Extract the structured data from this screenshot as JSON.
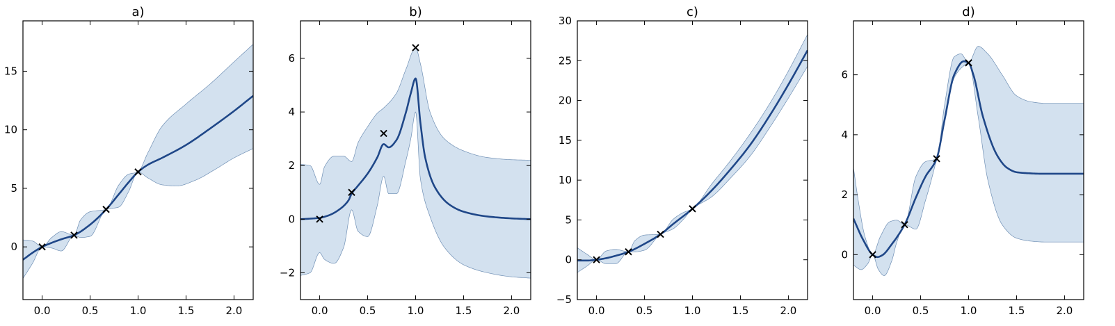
{
  "chart_data": [
    {
      "type": "line",
      "title": "a)",
      "xlim": [
        -0.2,
        2.2
      ],
      "ylim": [
        -4.5,
        19.3
      ],
      "x_ticks": [
        0.0,
        0.5,
        1.0,
        1.5,
        2.0
      ],
      "y_ticks": [
        0,
        5,
        10,
        15
      ],
      "x_tick_labels": [
        "0.0",
        "0.5",
        "1.0",
        "1.5",
        "2.0"
      ],
      "y_tick_labels": [
        "0",
        "5",
        "10",
        "15"
      ],
      "observations": {
        "x": [
          0.0,
          0.333,
          0.667,
          1.0
        ],
        "y": [
          0.0,
          1.0,
          3.2,
          6.4
        ]
      },
      "mean": {
        "x": [
          -0.2,
          -0.1,
          0.0,
          0.1,
          0.2,
          0.333,
          0.5,
          0.667,
          0.8,
          0.9,
          1.0,
          1.1,
          1.25,
          1.5,
          1.75,
          2.0,
          2.2
        ],
        "y": [
          -1.1,
          -0.5,
          0.0,
          0.35,
          0.65,
          1.0,
          1.9,
          3.2,
          4.5,
          5.5,
          6.4,
          7.0,
          7.6,
          8.7,
          10.1,
          11.6,
          12.9
        ]
      },
      "upper": {
        "x": [
          -0.2,
          -0.1,
          0.0,
          0.1,
          0.2,
          0.333,
          0.4,
          0.5,
          0.667,
          0.8,
          0.9,
          1.0,
          1.1,
          1.25,
          1.5,
          1.75,
          2.0,
          2.2
        ],
        "y": [
          0.6,
          0.5,
          0.0,
          0.8,
          1.3,
          1.0,
          2.3,
          3.0,
          3.2,
          5.3,
          6.2,
          6.4,
          8.0,
          10.3,
          12.2,
          13.9,
          15.8,
          17.3
        ]
      },
      "lower": {
        "x": [
          -0.2,
          -0.1,
          0.0,
          0.1,
          0.2,
          0.333,
          0.4,
          0.5,
          0.667,
          0.8,
          0.9,
          1.0,
          1.1,
          1.25,
          1.4,
          1.6,
          1.8,
          2.0,
          2.2
        ],
        "y": [
          -2.7,
          -1.4,
          0.0,
          -0.1,
          -0.35,
          1.0,
          0.8,
          0.9,
          3.2,
          3.4,
          4.7,
          6.4,
          5.9,
          5.3,
          5.2,
          5.7,
          6.6,
          7.6,
          8.4
        ]
      }
    },
    {
      "type": "line",
      "title": "b)",
      "xlim": [
        -0.2,
        2.2
      ],
      "ylim": [
        -3.0,
        7.4
      ],
      "x_ticks": [
        0.0,
        0.5,
        1.0,
        1.5,
        2.0
      ],
      "y_ticks": [
        -2,
        0,
        2,
        4,
        6
      ],
      "x_tick_labels": [
        "0.0",
        "0.5",
        "1.0",
        "1.5",
        "2.0"
      ],
      "y_tick_labels": [
        "−2",
        "0",
        "2",
        "4",
        "6"
      ],
      "observations": {
        "x": [
          0.0,
          0.333,
          0.667,
          1.0
        ],
        "y": [
          0.0,
          1.0,
          3.2,
          6.4
        ]
      },
      "mean": {
        "x": [
          -0.2,
          -0.1,
          0.0,
          0.1,
          0.2,
          0.3,
          0.333,
          0.4,
          0.5,
          0.6,
          0.667,
          0.72,
          0.8,
          0.9,
          0.95,
          1.0,
          1.05,
          1.1,
          1.2,
          1.35,
          1.5,
          1.75,
          2.0,
          2.2
        ],
        "y": [
          0.0,
          0.02,
          0.05,
          0.15,
          0.35,
          0.7,
          0.95,
          1.25,
          1.7,
          2.3,
          2.8,
          2.68,
          2.95,
          4.0,
          4.7,
          5.25,
          3.6,
          2.3,
          1.2,
          0.55,
          0.28,
          0.1,
          0.03,
          0.0
        ]
      },
      "upper": {
        "x": [
          -0.2,
          -0.1,
          0.0,
          0.05,
          0.15,
          0.25,
          0.333,
          0.4,
          0.5,
          0.6,
          0.667,
          0.8,
          0.9,
          1.0,
          1.05,
          1.15,
          1.3,
          1.5,
          1.75,
          2.0,
          2.2
        ],
        "y": [
          2.05,
          2.0,
          1.3,
          1.95,
          2.35,
          2.35,
          2.15,
          2.85,
          3.45,
          3.95,
          4.15,
          4.7,
          5.6,
          6.4,
          5.8,
          4.0,
          3.0,
          2.55,
          2.3,
          2.22,
          2.2
        ]
      },
      "lower": {
        "x": [
          -0.2,
          -0.1,
          0.0,
          0.05,
          0.15,
          0.25,
          0.333,
          0.4,
          0.5,
          0.6,
          0.667,
          0.72,
          0.8,
          0.9,
          0.95,
          1.0,
          1.05,
          1.15,
          1.3,
          1.5,
          1.75,
          2.0,
          2.2
        ],
        "y": [
          -2.1,
          -2.0,
          -1.25,
          -1.5,
          -1.65,
          -1.05,
          0.35,
          -0.45,
          -0.65,
          0.5,
          1.6,
          0.95,
          0.95,
          2.2,
          3.0,
          4.0,
          1.5,
          0.1,
          -1.05,
          -1.7,
          -2.0,
          -2.15,
          -2.2
        ]
      }
    },
    {
      "type": "line",
      "title": "c)",
      "xlim": [
        -0.2,
        2.2
      ],
      "ylim": [
        -5,
        30
      ],
      "x_ticks": [
        0.0,
        0.5,
        1.0,
        1.5,
        2.0
      ],
      "y_ticks": [
        -5,
        0,
        5,
        10,
        15,
        20,
        25,
        30
      ],
      "x_tick_labels": [
        "0.0",
        "0.5",
        "1.0",
        "1.5",
        "2.0"
      ],
      "y_tick_labels": [
        "−5",
        "0",
        "5",
        "10",
        "15",
        "20",
        "25",
        "30"
      ],
      "observations": {
        "x": [
          0.0,
          0.333,
          0.667,
          1.0
        ],
        "y": [
          0.0,
          1.0,
          3.2,
          6.4
        ]
      },
      "mean": {
        "x": [
          -0.2,
          -0.1,
          0.0,
          0.1,
          0.2,
          0.333,
          0.5,
          0.667,
          0.8,
          1.0,
          1.2,
          1.4,
          1.6,
          1.8,
          2.0,
          2.2
        ],
        "y": [
          -0.1,
          -0.1,
          0.0,
          0.2,
          0.5,
          1.0,
          2.0,
          3.2,
          4.5,
          6.4,
          8.7,
          11.4,
          14.4,
          18.0,
          22.0,
          26.3
        ]
      },
      "upper": {
        "x": [
          -0.2,
          -0.1,
          0.0,
          0.1,
          0.2,
          0.333,
          0.4,
          0.5,
          0.667,
          0.8,
          0.9,
          1.0,
          1.2,
          1.4,
          1.6,
          1.8,
          2.0,
          2.2
        ],
        "y": [
          1.5,
          0.7,
          0.0,
          1.1,
          1.3,
          1.0,
          2.4,
          3.1,
          3.2,
          5.1,
          5.9,
          6.4,
          9.5,
          12.5,
          15.8,
          19.5,
          23.7,
          28.3
        ]
      },
      "lower": {
        "x": [
          -0.2,
          -0.1,
          0.0,
          0.1,
          0.2,
          0.333,
          0.4,
          0.5,
          0.667,
          0.8,
          0.9,
          1.0,
          1.2,
          1.4,
          1.6,
          1.8,
          2.0,
          2.2
        ],
        "y": [
          -1.6,
          -0.8,
          0.0,
          -0.5,
          -0.5,
          1.0,
          1.0,
          1.2,
          3.2,
          3.9,
          5.0,
          6.4,
          7.9,
          10.3,
          13.0,
          16.5,
          20.3,
          24.3
        ]
      }
    },
    {
      "type": "line",
      "title": "d)",
      "xlim": [
        -0.2,
        2.2
      ],
      "ylim": [
        -1.5,
        7.8
      ],
      "x_ticks": [
        0.0,
        0.5,
        1.0,
        1.5,
        2.0
      ],
      "y_ticks": [
        0,
        2,
        4,
        6
      ],
      "x_tick_labels": [
        "0.0",
        "0.5",
        "1.0",
        "1.5",
        "2.0"
      ],
      "y_tick_labels": [
        "0",
        "2",
        "4",
        "6"
      ],
      "observations": {
        "x": [
          0.0,
          0.333,
          0.667,
          1.0
        ],
        "y": [
          0.0,
          1.0,
          3.2,
          6.4
        ]
      },
      "mean": {
        "x": [
          -0.2,
          -0.1,
          0.0,
          0.05,
          0.1,
          0.2,
          0.333,
          0.45,
          0.55,
          0.667,
          0.75,
          0.85,
          0.95,
          1.0,
          1.05,
          1.15,
          1.3,
          1.4,
          1.5,
          1.6,
          1.75,
          2.0,
          2.2
        ],
        "y": [
          1.2,
          0.5,
          0.0,
          -0.08,
          -0.02,
          0.35,
          1.0,
          1.9,
          2.6,
          3.2,
          4.5,
          6.0,
          6.45,
          6.4,
          6.0,
          4.6,
          3.3,
          2.9,
          2.75,
          2.72,
          2.7,
          2.7,
          2.7
        ]
      },
      "upper": {
        "x": [
          -0.2,
          -0.15,
          -0.08,
          0.0,
          0.08,
          0.18,
          0.25,
          0.333,
          0.45,
          0.55,
          0.667,
          0.75,
          0.85,
          0.92,
          1.0,
          1.1,
          1.2,
          1.35,
          1.5,
          1.65,
          1.8,
          2.0,
          2.2
        ],
        "y": [
          2.9,
          1.8,
          0.6,
          0.0,
          0.6,
          1.1,
          1.15,
          1.0,
          2.6,
          3.1,
          3.2,
          5.0,
          6.6,
          6.7,
          6.4,
          6.95,
          6.7,
          6.0,
          5.3,
          5.1,
          5.05,
          5.05,
          5.05
        ]
      },
      "lower": {
        "x": [
          -0.2,
          -0.12,
          -0.05,
          0.0,
          0.06,
          0.12,
          0.2,
          0.25,
          0.333,
          0.45,
          0.55,
          0.667,
          0.75,
          0.85,
          0.95,
          1.0,
          1.1,
          1.2,
          1.35,
          1.5,
          1.65,
          1.8,
          2.0,
          2.2
        ],
        "y": [
          -0.35,
          -0.5,
          -0.3,
          0.0,
          -0.5,
          -0.7,
          -0.2,
          0.4,
          1.0,
          0.85,
          1.8,
          3.2,
          4.5,
          5.9,
          6.3,
          6.4,
          4.6,
          2.5,
          1.0,
          0.55,
          0.45,
          0.42,
          0.42,
          0.42
        ]
      }
    }
  ],
  "style": {
    "mean_color": "#1f4788",
    "band_fill": "#d3e1ef",
    "band_edge": "#6f8fb4",
    "marker_color": "#000000"
  }
}
